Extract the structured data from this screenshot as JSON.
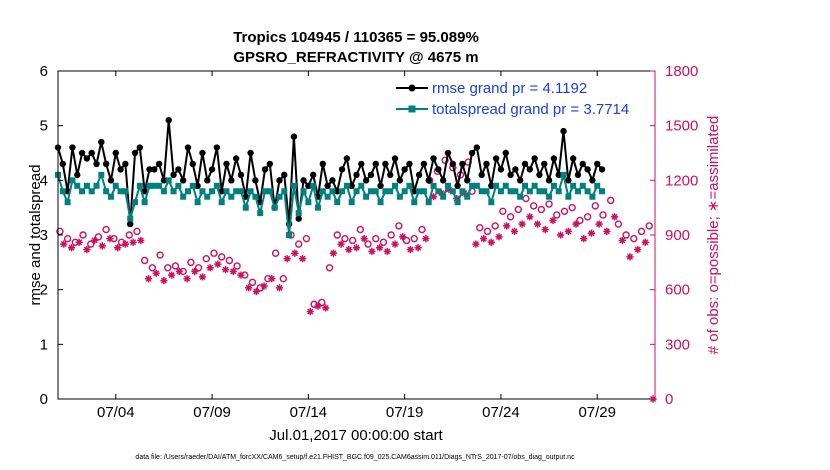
{
  "chart_data": {
    "type": "line",
    "title_line1": "Tropics 104945 / 110365 = 95.089%",
    "title_line2": "GPSRO_REFRACTIVITY @ 4675 m",
    "xlabel": "Jul.01,2017 00:00:00 start",
    "ylabel_left": "rmse and totalspread",
    "ylabel_right": "# of obs: o=possible; ∗=assimilated",
    "x_range_days": [
      0.0,
      31.0
    ],
    "ylim_left": [
      0,
      6
    ],
    "ylim_right": [
      0,
      1800
    ],
    "x_ticks": [
      {
        "day": 3.0,
        "label": "07/04"
      },
      {
        "day": 8.0,
        "label": "07/09"
      },
      {
        "day": 13.0,
        "label": "07/14"
      },
      {
        "day": 18.0,
        "label": "07/19"
      },
      {
        "day": 23.0,
        "label": "07/24"
      },
      {
        "day": 28.0,
        "label": "07/29"
      }
    ],
    "y_ticks_left": [
      "0",
      "1",
      "2",
      "3",
      "4",
      "5",
      "6"
    ],
    "y_ticks_right": [
      "0",
      "300",
      "600",
      "900",
      "1200",
      "1500",
      "1800"
    ],
    "legend": {
      "position": "top-right"
    },
    "colors": {
      "rmse": "#000000",
      "totalspread": "#008080",
      "obs": "#cc1060",
      "legend_text": "#1a3fe0"
    },
    "series": [
      {
        "name": "rmse grand pr = 4.1192",
        "axis": "left",
        "values": [
          4.6,
          4.3,
          3.8,
          4.6,
          4.1,
          4.5,
          4.4,
          4.5,
          4.3,
          4.7,
          4.3,
          4.0,
          4.5,
          4.2,
          4.3,
          3.2,
          4.5,
          4.6,
          3.8,
          4.2,
          4.2,
          4.3,
          4.0,
          5.1,
          4.1,
          4.2,
          4.0,
          4.6,
          4.3,
          3.9,
          4.5,
          4.0,
          4.2,
          4.6,
          3.8,
          4.3,
          4.0,
          4.4,
          4.1,
          3.7,
          4.5,
          4.0,
          3.6,
          4.2,
          4.3,
          3.5,
          4.0,
          4.1,
          3.2,
          4.8,
          3.3,
          4.0,
          3.9,
          4.1,
          3.7,
          4.3,
          3.9,
          4.0,
          3.8,
          4.2,
          4.4,
          3.9,
          4.1,
          4.3,
          4.0,
          4.1,
          4.3,
          3.9,
          4.3,
          4.1,
          4.4,
          4.0,
          4.2,
          4.3,
          3.8,
          4.1,
          4.3,
          4.0,
          4.4,
          4.2,
          4.0,
          4.5,
          4.3,
          3.9,
          4.3,
          4.0,
          4.5,
          4.6,
          4.1,
          4.3,
          3.9,
          4.4,
          4.2,
          4.5,
          4.1,
          4.2,
          4.0,
          4.3,
          4.2,
          4.4,
          4.1,
          4.3,
          4.0,
          4.4,
          4.1,
          4.9,
          4.0,
          4.4,
          4.1,
          4.3,
          4.2,
          4.0,
          4.3,
          4.2
        ],
        "x_start": 0.0,
        "x_step": 0.25
      },
      {
        "name": "totalspread grand pr = 3.7714",
        "axis": "left",
        "values": [
          4.1,
          3.8,
          3.6,
          4.0,
          3.9,
          3.8,
          3.9,
          3.8,
          3.9,
          4.1,
          3.8,
          3.7,
          3.9,
          3.8,
          3.8,
          3.3,
          3.6,
          3.9,
          3.6,
          3.9,
          3.9,
          3.9,
          3.8,
          4.0,
          3.8,
          3.9,
          3.7,
          3.8,
          3.9,
          3.6,
          3.8,
          3.7,
          3.8,
          3.9,
          3.6,
          3.8,
          3.7,
          3.8,
          3.8,
          3.5,
          3.8,
          3.7,
          3.4,
          3.8,
          3.8,
          3.5,
          3.7,
          3.8,
          3.0,
          3.9,
          3.4,
          3.8,
          3.6,
          3.9,
          3.5,
          3.8,
          3.7,
          3.8,
          3.6,
          3.8,
          3.9,
          3.6,
          3.8,
          3.9,
          3.7,
          3.8,
          3.8,
          3.6,
          3.8,
          3.8,
          3.9,
          3.7,
          3.8,
          3.9,
          3.6,
          3.8,
          3.8,
          3.6,
          3.9,
          3.8,
          3.7,
          3.9,
          3.8,
          3.6,
          3.8,
          3.7,
          3.9,
          3.9,
          3.8,
          3.8,
          3.6,
          3.9,
          3.8,
          3.9,
          3.8,
          3.8,
          3.7,
          3.9,
          3.8,
          3.9,
          3.8,
          3.8,
          3.7,
          3.9,
          3.8,
          4.1,
          3.7,
          3.9,
          3.8,
          3.9,
          3.8,
          3.7,
          3.9,
          3.8
        ],
        "x_start": 0.0,
        "x_step": 0.25
      }
    ],
    "obs_possible": {
      "name": "possible",
      "marker": "circle",
      "points": [
        [
          0.1,
          920
        ],
        [
          0.5,
          880
        ],
        [
          0.9,
          860
        ],
        [
          1.3,
          900
        ],
        [
          1.7,
          850
        ],
        [
          2.1,
          890
        ],
        [
          2.5,
          930
        ],
        [
          2.9,
          880
        ],
        [
          3.3,
          860
        ],
        [
          3.7,
          900
        ],
        [
          4.1,
          920
        ],
        [
          4.5,
          760
        ],
        [
          4.9,
          720
        ],
        [
          5.3,
          790
        ],
        [
          5.7,
          720
        ],
        [
          6.1,
          730
        ],
        [
          6.5,
          700
        ],
        [
          6.9,
          750
        ],
        [
          7.3,
          720
        ],
        [
          7.7,
          770
        ],
        [
          8.1,
          800
        ],
        [
          8.5,
          780
        ],
        [
          8.9,
          760
        ],
        [
          9.3,
          730
        ],
        [
          9.7,
          680
        ],
        [
          10.1,
          640
        ],
        [
          10.5,
          610
        ],
        [
          10.9,
          660
        ],
        [
          11.3,
          800
        ],
        [
          11.7,
          660
        ],
        [
          12.1,
          900
        ],
        [
          12.5,
          850
        ],
        [
          12.9,
          880
        ],
        [
          13.3,
          520
        ],
        [
          13.7,
          530
        ],
        [
          14.1,
          720
        ],
        [
          14.5,
          900
        ],
        [
          14.9,
          880
        ],
        [
          15.3,
          870
        ],
        [
          15.7,
          930
        ],
        [
          16.1,
          850
        ],
        [
          16.5,
          880
        ],
        [
          16.9,
          860
        ],
        [
          17.3,
          900
        ],
        [
          17.7,
          950
        ],
        [
          18.1,
          870
        ],
        [
          18.5,
          880
        ],
        [
          18.9,
          930
        ],
        [
          19.3,
          1200
        ],
        [
          19.7,
          1250
        ],
        [
          20.1,
          1310
        ],
        [
          20.5,
          1270
        ],
        [
          20.9,
          1230
        ],
        [
          21.3,
          1300
        ],
        [
          21.5,
          1140
        ],
        [
          21.9,
          940
        ],
        [
          22.3,
          920
        ],
        [
          22.7,
          950
        ],
        [
          23.1,
          1030
        ],
        [
          23.5,
          1000
        ],
        [
          23.9,
          1040
        ],
        [
          24.3,
          1100
        ],
        [
          24.7,
          1060
        ],
        [
          25.1,
          1040
        ],
        [
          25.5,
          1070
        ],
        [
          25.9,
          1010
        ],
        [
          26.3,
          1030
        ],
        [
          26.7,
          1050
        ],
        [
          27.1,
          980
        ],
        [
          27.5,
          1000
        ],
        [
          27.9,
          1060
        ],
        [
          28.3,
          1010
        ],
        [
          28.7,
          1090
        ],
        [
          29.1,
          960
        ],
        [
          29.5,
          900
        ],
        [
          29.9,
          880
        ],
        [
          30.3,
          920
        ],
        [
          30.7,
          950
        ]
      ]
    },
    "obs_assimilated": {
      "name": "assimilated",
      "marker": "asterisk",
      "points": [
        [
          0.3,
          850
        ],
        [
          0.7,
          830
        ],
        [
          1.1,
          860
        ],
        [
          1.5,
          820
        ],
        [
          1.9,
          870
        ],
        [
          2.3,
          840
        ],
        [
          2.7,
          880
        ],
        [
          3.1,
          830
        ],
        [
          3.5,
          850
        ],
        [
          3.9,
          860
        ],
        [
          4.3,
          870
        ],
        [
          4.7,
          660
        ],
        [
          5.1,
          690
        ],
        [
          5.5,
          650
        ],
        [
          5.9,
          680
        ],
        [
          6.3,
          700
        ],
        [
          6.7,
          660
        ],
        [
          7.1,
          700
        ],
        [
          7.5,
          670
        ],
        [
          7.9,
          720
        ],
        [
          8.3,
          740
        ],
        [
          8.7,
          710
        ],
        [
          9.1,
          700
        ],
        [
          9.5,
          680
        ],
        [
          9.9,
          610
        ],
        [
          10.3,
          590
        ],
        [
          10.7,
          620
        ],
        [
          11.1,
          660
        ],
        [
          11.5,
          610
        ],
        [
          11.9,
          770
        ],
        [
          12.3,
          800
        ],
        [
          12.7,
          770
        ],
        [
          13.1,
          480
        ],
        [
          13.5,
          510
        ],
        [
          13.9,
          500
        ],
        [
          14.3,
          800
        ],
        [
          14.7,
          850
        ],
        [
          15.1,
          820
        ],
        [
          15.5,
          830
        ],
        [
          15.9,
          880
        ],
        [
          16.3,
          810
        ],
        [
          16.7,
          830
        ],
        [
          17.1,
          810
        ],
        [
          17.5,
          850
        ],
        [
          17.9,
          890
        ],
        [
          18.3,
          820
        ],
        [
          18.7,
          830
        ],
        [
          19.1,
          880
        ],
        [
          19.5,
          1110
        ],
        [
          19.9,
          1130
        ],
        [
          20.3,
          1150
        ],
        [
          20.7,
          1100
        ],
        [
          21.1,
          1130
        ],
        [
          21.7,
          850
        ],
        [
          22.1,
          880
        ],
        [
          22.5,
          860
        ],
        [
          22.9,
          890
        ],
        [
          23.3,
          950
        ],
        [
          23.7,
          920
        ],
        [
          24.1,
          960
        ],
        [
          24.5,
          1000
        ],
        [
          24.9,
          960
        ],
        [
          25.3,
          930
        ],
        [
          25.7,
          980
        ],
        [
          26.1,
          900
        ],
        [
          26.5,
          920
        ],
        [
          26.9,
          960
        ],
        [
          27.3,
          880
        ],
        [
          27.7,
          910
        ],
        [
          28.1,
          960
        ],
        [
          28.5,
          920
        ],
        [
          28.9,
          1000
        ],
        [
          29.3,
          870
        ],
        [
          29.7,
          780
        ],
        [
          30.1,
          820
        ],
        [
          30.5,
          860
        ],
        [
          30.9,
          0
        ]
      ]
    },
    "footnote": "data file: /Users/raeder/DAI/ATM_forcXX/CAM6_setup/f.e21.FHIST_BGC.f09_025.CAM6assim.011/Diags_NTrS_2017-07/obs_diag_output.nc"
  }
}
